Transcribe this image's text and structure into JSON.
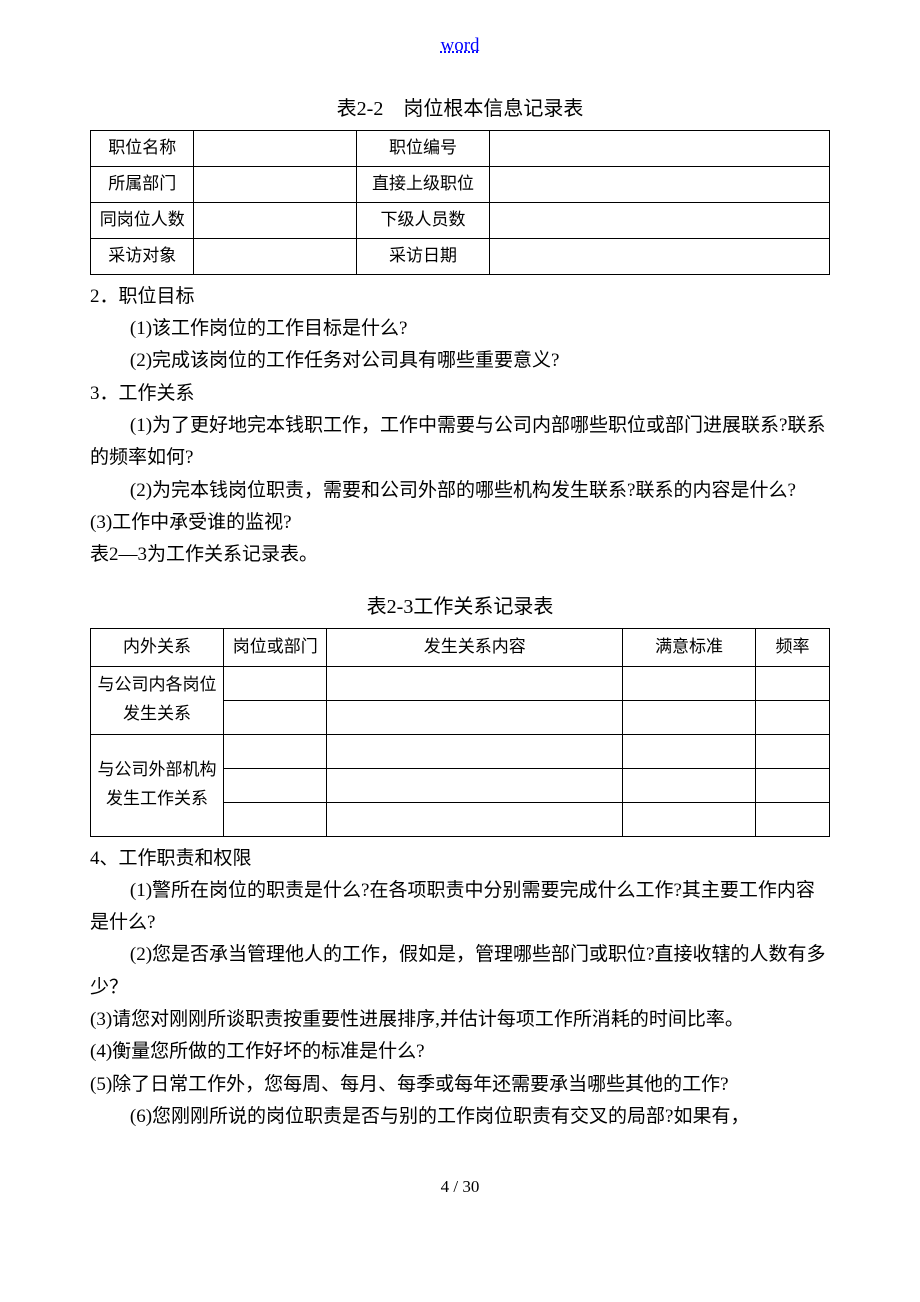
{
  "header": {
    "word": "word"
  },
  "table1": {
    "caption": "表2-2 岗位根本信息记录表",
    "rows": [
      {
        "l1": "职位名称",
        "v1": "",
        "l2": "职位编号",
        "v2": ""
      },
      {
        "l1": "所属部门",
        "v1": "",
        "l2": "直接上级职位",
        "v2": ""
      },
      {
        "l1": "同岗位人数",
        "v1": "",
        "l2": "下级人员数",
        "v2": ""
      },
      {
        "l1": "采访对象",
        "v1": "",
        "l2": "采访日期",
        "v2": ""
      }
    ]
  },
  "sec2": {
    "head": "2．职位目标",
    "q1": "(1)该工作岗位的工作目标是什么?",
    "q2": "(2)完成该岗位的工作任务对公司具有哪些重要意义?"
  },
  "sec3": {
    "head": "3．工作关系",
    "q1": "(1)为了更好地完本钱职工作，工作中需要与公司内部哪些职位或部门进展联系?联系的频率如何?",
    "q2": "(2)为完本钱岗位职责，需要和公司外部的哪些机构发生联系?联系的内容是什么?",
    "q3": "(3)工作中承受谁的监视?",
    "note": "表2—3为工作关系记录表。"
  },
  "table2": {
    "caption": "表2-3工作关系记录表",
    "headers": [
      "内外关系",
      "岗位或部门",
      "发生关系内容",
      "满意标准",
      "频率"
    ],
    "group1_label": "与公司内各岗位发生关系",
    "group2_label": "与公司外部机构发生工作关系"
  },
  "sec4": {
    "head": "4、工作职责和权限",
    "q1": "(1)警所在岗位的职责是什么?在各项职责中分别需要完成什么工作?其主要工作内容是什么?",
    "q2": "(2)您是否承当管理他人的工作，假如是，管理哪些部门或职位?直接收辖的人数有多少？",
    "q3": "(3)请您对刚刚所谈职责按重要性进展排序,并估计每项工作所消耗的时间比率。",
    "q4": "(4)衡量您所做的工作好坏的标准是什么?",
    "q5": "(5)除了日常工作外，您每周、每月、每季或每年还需要承当哪些其他的工作?",
    "q6": "(6)您刚刚所说的岗位职责是否与别的工作岗位职责有交叉的局部?如果有，"
  },
  "footer": {
    "page": "4 / 30"
  }
}
